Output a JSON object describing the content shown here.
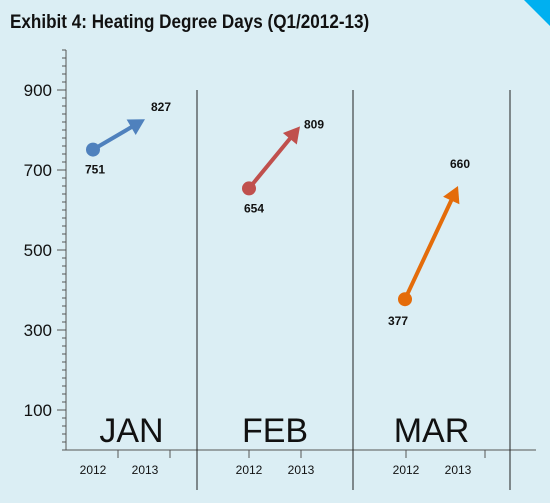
{
  "title": "Exhibit 4: Heating Degree Days (Q1/2012-13)",
  "colors": {
    "background": "#dbeef4",
    "corner_accent": "#00b0f0",
    "JAN": "#4f81bd",
    "FEB": "#c0504d",
    "MAR": "#e46c0a"
  },
  "chart_data": {
    "type": "scatter",
    "title": "Exhibit 4: Heating Degree Days (Q1/2012-13)",
    "xlabel": "",
    "ylabel": "",
    "ylim": [
      0,
      1000
    ],
    "yticks": [
      100,
      300,
      500,
      700,
      900
    ],
    "grid": false,
    "years": [
      "2012",
      "2013"
    ],
    "groups": [
      {
        "month": "JAN",
        "from": 751,
        "to": 827
      },
      {
        "month": "FEB",
        "from": 654,
        "to": 809
      },
      {
        "month": "MAR",
        "from": 377,
        "to": 660
      }
    ]
  }
}
